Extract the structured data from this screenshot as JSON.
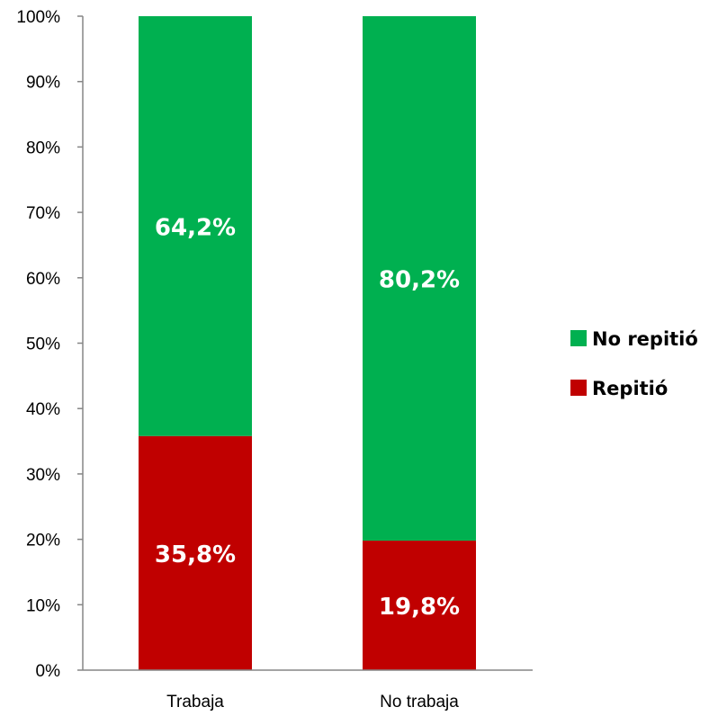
{
  "chart_data": {
    "type": "bar",
    "stacked": true,
    "categories": [
      "Trabaja",
      "No trabaja"
    ],
    "series": [
      {
        "name": "Repitió",
        "values": [
          35.8,
          19.8
        ],
        "labels": [
          "35,8%",
          "19,8%"
        ],
        "color": "#c00000"
      },
      {
        "name": "No repitió",
        "values": [
          64.2,
          80.2
        ],
        "labels": [
          "64,2%",
          "80,2%"
        ],
        "color": "#00b050"
      }
    ],
    "ylim": [
      0,
      100
    ],
    "yticks": [
      "0%",
      "10%",
      "20%",
      "30%",
      "40%",
      "50%",
      "60%",
      "70%",
      "80%",
      "90%",
      "100%"
    ],
    "grid": false,
    "legend": {
      "position": "right",
      "entries": [
        {
          "label": "No repitió",
          "color": "#00b050"
        },
        {
          "label": "Repitió",
          "color": "#c00000"
        }
      ]
    }
  }
}
